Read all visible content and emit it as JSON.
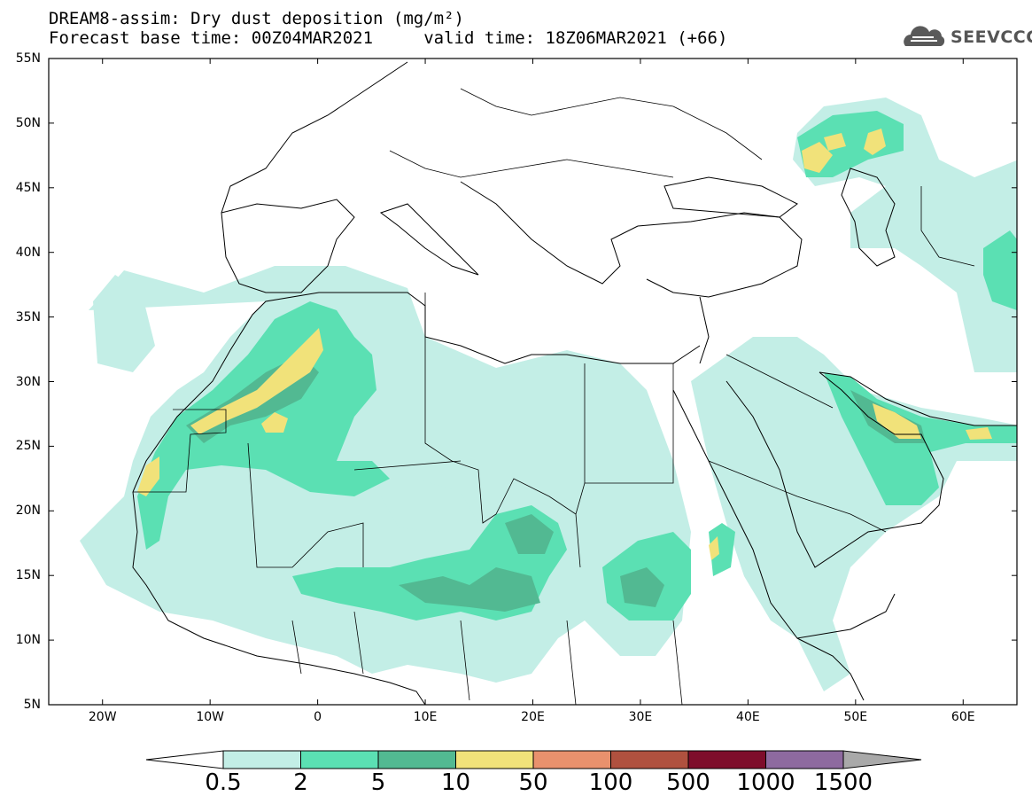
{
  "title": {
    "line1": "DREAM8-assim: Dry dust deposition (mg/m²)",
    "line2": "Forecast base time: 00Z04MAR2021     valid time: 18Z06MAR2021 (+66)"
  },
  "logo": {
    "text": "SEEVCCC",
    "icon": "cloud-logo-icon"
  },
  "map": {
    "lon_range": [
      -25,
      65
    ],
    "lat_range": [
      5,
      55
    ],
    "lat_ticks": [
      "55N",
      "50N",
      "45N",
      "40N",
      "35N",
      "30N",
      "25N",
      "20N",
      "15N",
      "10N",
      "5N"
    ],
    "lon_ticks": [
      "20W",
      "10W",
      "0",
      "10E",
      "20E",
      "30E",
      "40E",
      "50E",
      "60E"
    ]
  },
  "legend": {
    "labels": [
      "0.5",
      "2",
      "5",
      "10",
      "50",
      "100",
      "500",
      "1000",
      "1500"
    ],
    "colors": [
      "#c3eee6",
      "#5be0b3",
      "#52b992",
      "#f1e27a",
      "#e9916d",
      "#b0513f",
      "#7e0d2b",
      "#8e6a9f"
    ],
    "end_colors": {
      "low": "#ffffff",
      "high": "#a9a9a9"
    }
  }
}
